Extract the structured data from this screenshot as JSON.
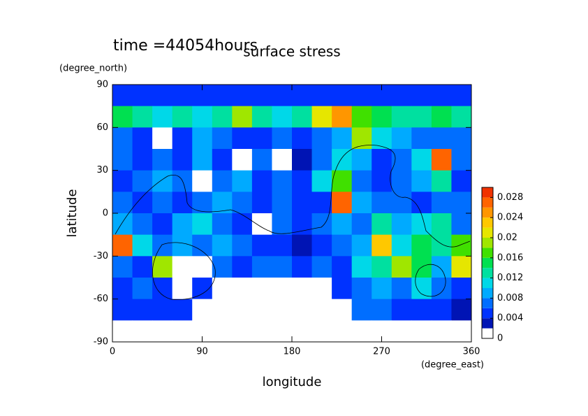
{
  "chart_data": {
    "type": "contour",
    "title": "surface stress",
    "subtitle": "time =44054hours",
    "x_label": "longitude",
    "y_label": "latitude",
    "x_unit": "(degree_east)",
    "y_unit": "(degree_north)",
    "xlim": [
      0,
      360
    ],
    "xticks": [
      0,
      90,
      180,
      270,
      360
    ],
    "ylim": [
      -90,
      90
    ],
    "yticks": [
      -90,
      -60,
      -30,
      0,
      30,
      60,
      90
    ],
    "x": [
      10,
      30,
      50,
      70,
      90,
      110,
      130,
      150,
      170,
      190,
      210,
      230,
      250,
      270,
      290,
      310,
      330,
      350
    ],
    "y": [
      82.5,
      67.5,
      52.5,
      37.5,
      22.5,
      7.5,
      -7.5,
      -22.5,
      -37.5,
      -52.5,
      -67.5,
      -82.5
    ],
    "z": [
      [
        0.005,
        0.005,
        0.005,
        0.005,
        0.005,
        0.005,
        0.005,
        0.005,
        0.005,
        0.005,
        0.005,
        0.005,
        0.005,
        0.005,
        0.005,
        0.005,
        0.005,
        0.005
      ],
      [
        0.014,
        0.012,
        0.01,
        0.012,
        0.01,
        0.012,
        0.018,
        0.012,
        0.01,
        0.012,
        0.02,
        0.024,
        0.016,
        0.014,
        0.012,
        0.012,
        0.014,
        0.012
      ],
      [
        0.006,
        0.004,
        0.001,
        0.004,
        0.008,
        0.006,
        0.005,
        0.004,
        0.006,
        0.004,
        0.006,
        0.008,
        0.018,
        0.01,
        0.008,
        0.006,
        0.006,
        0.006
      ],
      [
        0.006,
        0.004,
        0.006,
        0.004,
        0.008,
        0.004,
        0.001,
        0.006,
        0.001,
        0.002,
        0.006,
        0.01,
        0.008,
        0.004,
        0.006,
        0.01,
        0.026,
        0.006
      ],
      [
        0.004,
        0.006,
        0.008,
        0.006,
        0.001,
        0.006,
        0.008,
        0.004,
        0.006,
        0.004,
        0.01,
        0.016,
        0.006,
        0.004,
        0.006,
        0.008,
        0.012,
        0.004
      ],
      [
        0.006,
        0.004,
        0.006,
        0.004,
        0.006,
        0.008,
        0.006,
        0.004,
        0.006,
        0.004,
        0.004,
        0.026,
        0.008,
        0.006,
        0.006,
        0.004,
        0.006,
        0.006
      ],
      [
        0.008,
        0.006,
        0.004,
        0.008,
        0.01,
        0.006,
        0.004,
        0.001,
        0.006,
        0.004,
        0.006,
        0.008,
        0.006,
        0.012,
        0.008,
        0.01,
        0.012,
        0.006
      ],
      [
        0.026,
        0.01,
        0.006,
        0.008,
        0.006,
        0.008,
        0.006,
        0.004,
        0.004,
        0.002,
        0.004,
        0.006,
        0.008,
        0.022,
        0.01,
        0.014,
        0.012,
        0.016
      ],
      [
        0.006,
        0.004,
        0.018,
        0.001,
        0.001,
        0.006,
        0.004,
        0.006,
        0.006,
        0.004,
        0.006,
        0.004,
        0.01,
        0.012,
        0.018,
        0.014,
        0.008,
        0.02
      ],
      [
        0.004,
        0.006,
        0.004,
        0.001,
        0.004,
        0.001,
        0.001,
        0.001,
        0.001,
        0.001,
        0.001,
        0.004,
        0.006,
        0.008,
        0.006,
        0.01,
        0.006,
        0.004
      ],
      [
        0.004,
        0.004,
        0.004,
        0.004,
        0.001,
        0.001,
        0.001,
        0.001,
        0.001,
        0.001,
        0.001,
        0.001,
        0.006,
        0.006,
        0.004,
        0.004,
        0.004,
        0.002
      ],
      [
        0,
        0,
        0,
        0,
        0,
        0,
        0,
        0,
        0,
        0,
        0,
        0,
        0,
        0,
        0,
        0,
        0,
        0
      ]
    ],
    "clevels": [
      0,
      0.002,
      0.004,
      0.006,
      0.008,
      0.01,
      0.012,
      0.014,
      0.016,
      0.018,
      0.02,
      0.022,
      0.024,
      0.026,
      0.028,
      0.03
    ],
    "colors": [
      "#ffffff",
      "#0014b4",
      "#0032ff",
      "#006eff",
      "#00aaff",
      "#00d8e8",
      "#00e0a0",
      "#00e050",
      "#40e000",
      "#a0e600",
      "#e6e600",
      "#ffc800",
      "#ff9600",
      "#ff6400",
      "#f03200"
    ],
    "cticks": [
      0,
      0.004,
      0.008,
      0.012,
      0.016,
      0.02,
      0.024,
      0.028
    ]
  }
}
